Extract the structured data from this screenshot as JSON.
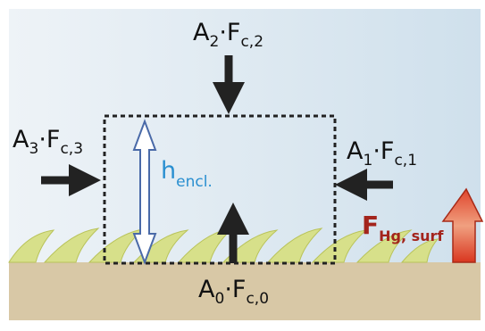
{
  "labels": {
    "top": [
      "A",
      "2",
      "·F",
      "c,2"
    ],
    "left": [
      "A",
      "3",
      "·F",
      "c,3"
    ],
    "right": [
      "A",
      "1",
      "·F",
      "c,1"
    ],
    "bottom": [
      "A",
      "0",
      "·F",
      "c,0"
    ],
    "height": [
      "h",
      "encl."
    ],
    "flux": [
      "F",
      "Hg, surf"
    ]
  }
}
